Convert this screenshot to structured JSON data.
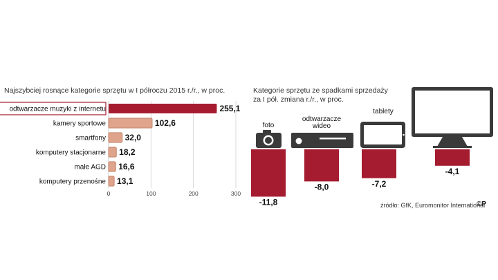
{
  "chart_data": [
    {
      "type": "bar",
      "orientation": "horizontal",
      "title": "Najszybciej rosnące kategorie sprzętu w I półroczu 2015 r./r., w proc.",
      "categories": [
        "odtwarzacze muzyki z internetu",
        "kamery sportowe",
        "smartfony",
        "komputery stacjonarne",
        "małe AGD",
        "komputery przenośne"
      ],
      "values": [
        255.1,
        102.6,
        32.0,
        18.2,
        16.6,
        13.1
      ],
      "value_labels": [
        "255,1",
        "102,6",
        "32,0",
        "18,2",
        "16,6",
        "13,1"
      ],
      "xlim": [
        0,
        300
      ],
      "xticks": [
        0,
        100,
        200,
        300
      ],
      "grid": true,
      "colors": {
        "highlight": "#a51c30",
        "bar": "#dfa48c",
        "label_bg": "#ffffff"
      }
    },
    {
      "type": "bar",
      "orientation": "vertical",
      "title_lines": [
        "Kategorie sprzętu ze spadkami sprzedaży",
        "za I pół. zmiana r./r., w proc."
      ],
      "categories": [
        "foto",
        "odtwarzacze wideo",
        "tablety",
        "telewizory"
      ],
      "category_label_lines": [
        [
          "foto"
        ],
        [
          "odtwarzacze",
          "wideo"
        ],
        [
          "tablety"
        ],
        [
          "telewizory"
        ]
      ],
      "icons": [
        "camera-icon",
        "video-player-icon",
        "tablet-icon",
        "television-icon"
      ],
      "values": [
        -11.8,
        -8.0,
        -7.2,
        -4.1
      ],
      "value_labels": [
        "-11,8",
        "-8,0",
        "-7,2",
        "-4,1"
      ],
      "colors": {
        "bar": "#a51c30",
        "icon": "#3a3a3a"
      }
    }
  ],
  "source": "źródło: GfK, Euromonitor International",
  "copyright": "©P"
}
